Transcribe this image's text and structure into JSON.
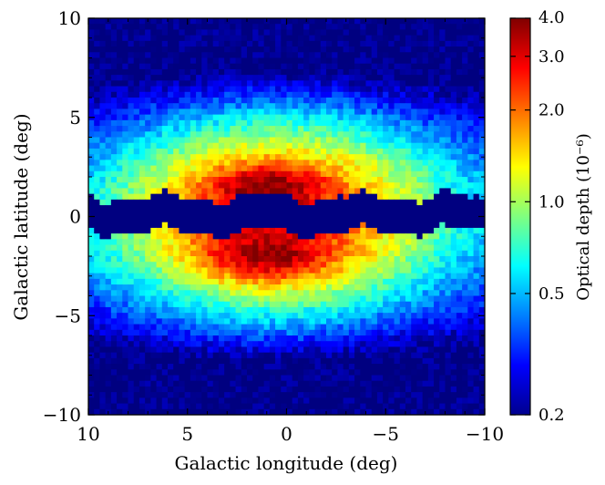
{
  "chart_data": {
    "type": "heatmap",
    "title": "",
    "xlabel": "Galactic longitude (deg)",
    "ylabel": "Galactic latitude (deg)",
    "xlim": [
      10,
      -10
    ],
    "ylim": [
      -10,
      10
    ],
    "x_ticks": [
      10,
      5,
      0,
      -5,
      -10
    ],
    "x_tick_labels": [
      "10",
      "5",
      "0",
      "−5",
      "−10"
    ],
    "y_ticks": [
      10,
      5,
      0,
      -5,
      -10
    ],
    "y_tick_labels": [
      "10",
      "5",
      "0",
      "−5",
      "−10"
    ],
    "colormap": "jet",
    "colorbar": {
      "label": "Optical depth (10⁻⁶)",
      "scale": "log",
      "range": [
        0.2,
        4.0
      ],
      "ticks": [
        0.2,
        0.5,
        1.0,
        2.0,
        3.0,
        4.0
      ],
      "tick_labels": [
        "0.2",
        "0.5",
        "1.0",
        "2.0",
        "3.0",
        "4.0"
      ]
    },
    "grid_bins": [
      70,
      70
    ],
    "model": {
      "description": "Optical depth map peaks near (l, b) = (1, +1.5) and (1, -2) with values about 3.3; a dust-obscured band |b| < 0.8 holds the minimum value 0.2; values fall to about 0.2 at |b| = 10.",
      "upper_lobe_center": [
        1.0,
        1.5
      ],
      "lower_lobe_center": [
        1.0,
        -2.0
      ],
      "peak_value": 3.3,
      "min_value": 0.2,
      "obscured_band_halfwidth_deg": 0.8
    }
  }
}
